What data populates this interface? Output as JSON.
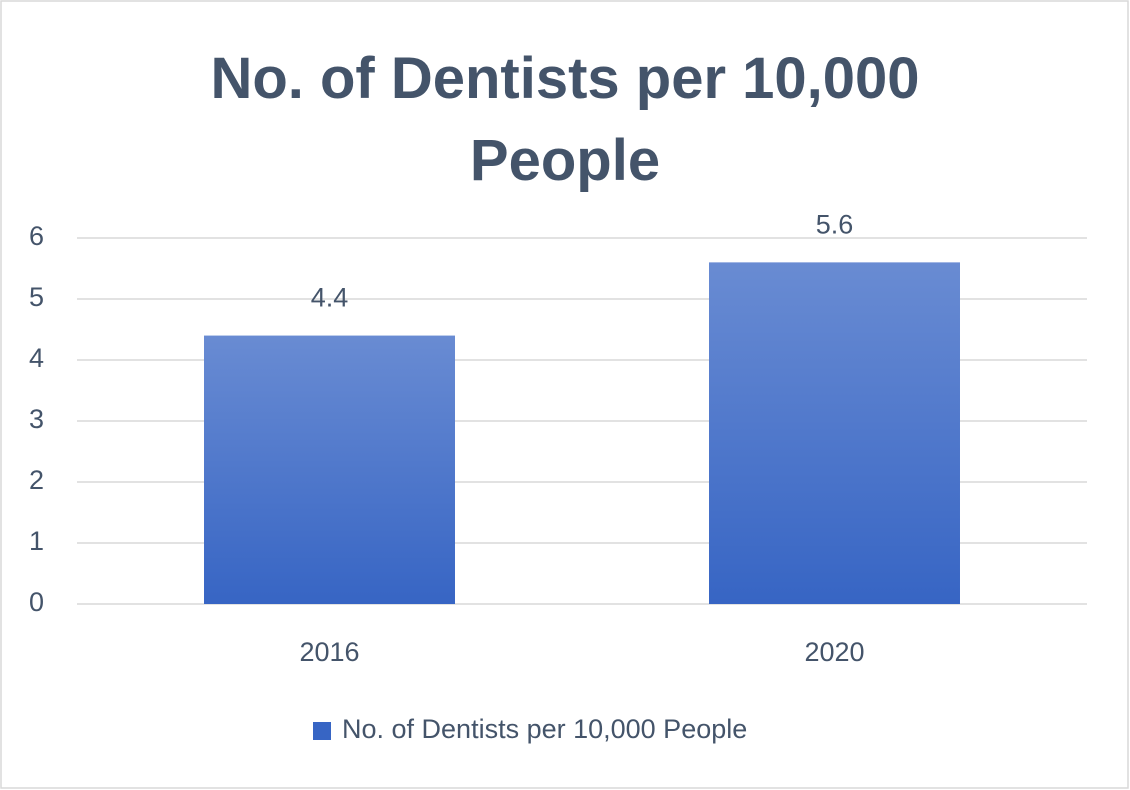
{
  "chart_data": {
    "type": "bar",
    "title": "No. of Dentists per 10,000 People",
    "categories": [
      "2016",
      "2020"
    ],
    "series": [
      {
        "name": "No. of Dentists per 10,000 People",
        "color": "#3765c4",
        "values": [
          4.4,
          5.6
        ]
      }
    ],
    "ylim": [
      0,
      6
    ],
    "yticks": [
      0,
      1,
      2,
      3,
      4,
      5,
      6
    ],
    "grid": true,
    "legend": "bottom"
  }
}
